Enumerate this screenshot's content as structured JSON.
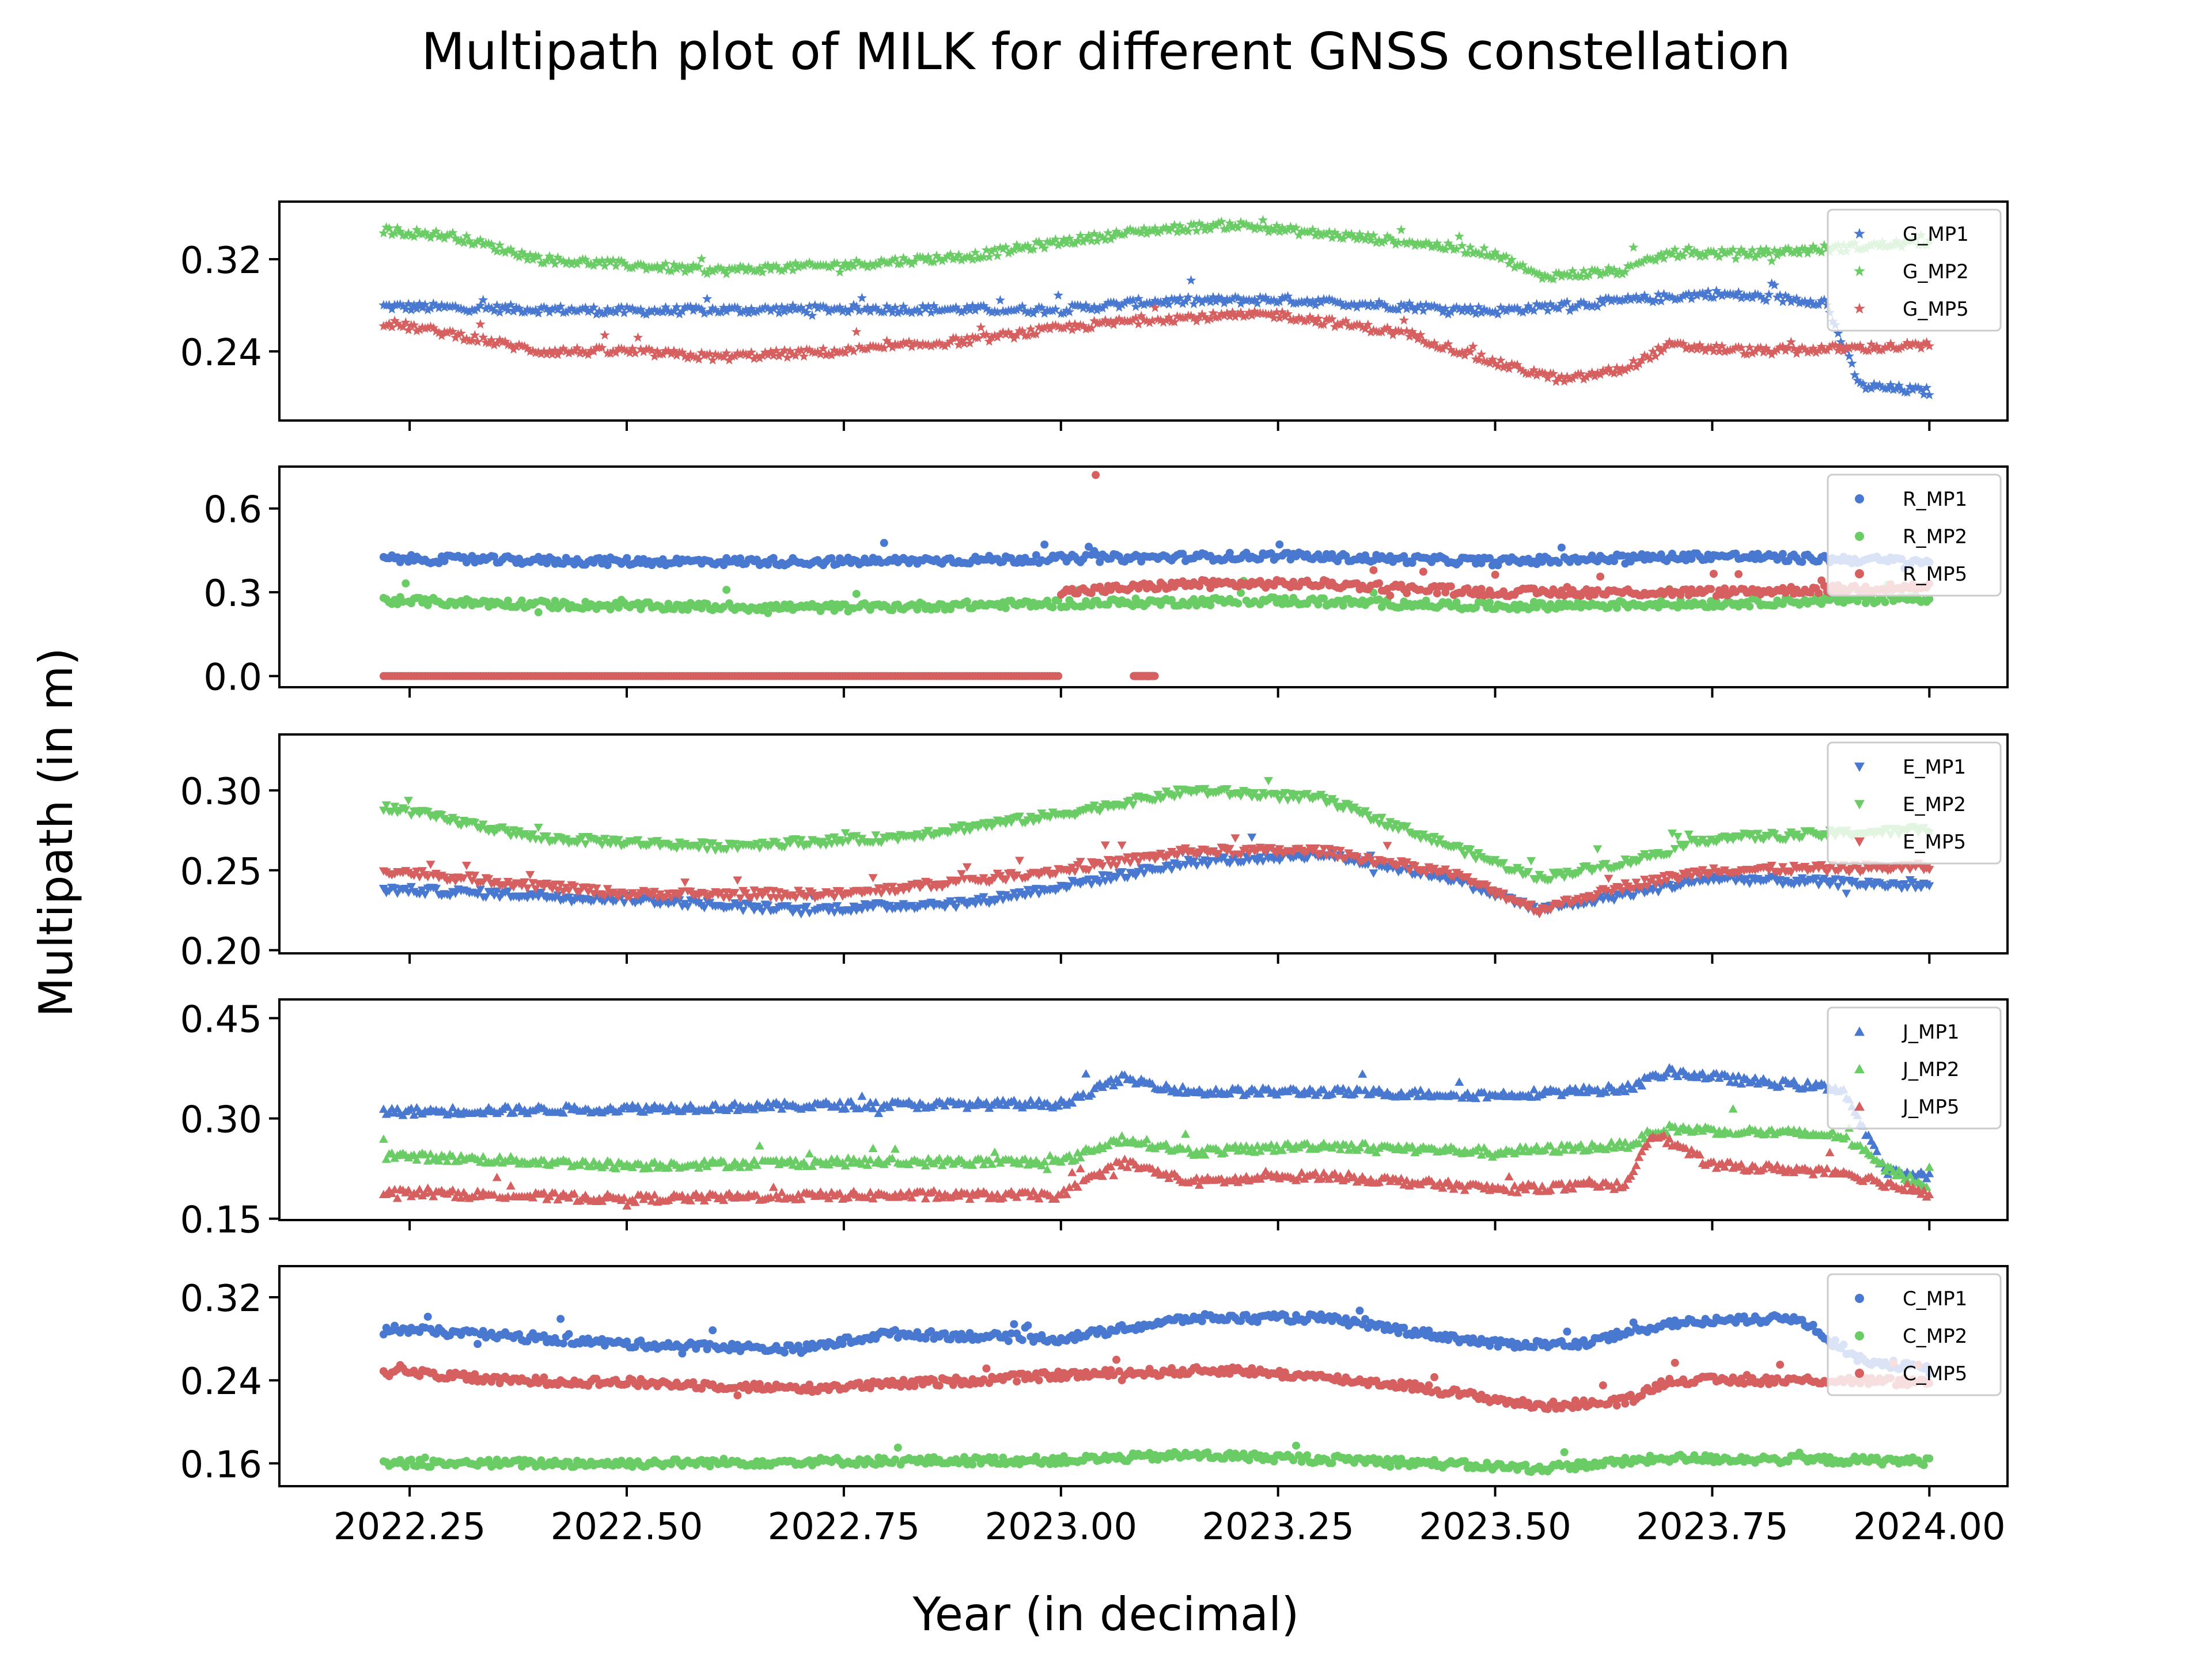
{
  "title": "Multipath plot of MILK for different GNSS constellation",
  "xlabel": "Year (in decimal)",
  "ylabel": "Multipath (in m)",
  "chart_data": {
    "type": "scatter",
    "title": "Multipath plot of MILK for different GNSS constellation",
    "xlabel": "Year (in decimal)",
    "ylabel": "Multipath (in m)",
    "xlim": [
      2022.1,
      2024.09
    ],
    "xticks": [
      2022.25,
      2022.5,
      2022.75,
      2023.0,
      2023.25,
      2023.5,
      2023.75,
      2024.0
    ],
    "xtick_labels": [
      "2022.25",
      "2022.50",
      "2022.75",
      "2023.00",
      "2023.25",
      "2023.50",
      "2023.75",
      "2024.00"
    ],
    "grid": false,
    "legend_placement": "upper-right",
    "x_range": [
      2022.22,
      2024.0
    ],
    "panels": [
      {
        "constellation": "G",
        "marker": "star",
        "ylim": [
          0.18,
          0.37
        ],
        "yticks": [
          0.24,
          0.32
        ],
        "ytick_labels": [
          "0.24",
          "0.32"
        ],
        "series": [
          {
            "name": "G_MP1",
            "color": "#4878d0",
            "profile": [
              [
                2022.22,
                0.279
              ],
              [
                2022.5,
                0.275
              ],
              [
                2022.75,
                0.277
              ],
              [
                2023.0,
                0.276
              ],
              [
                2023.1,
                0.283
              ],
              [
                2023.25,
                0.285
              ],
              [
                2023.5,
                0.275
              ],
              [
                2023.75,
                0.29
              ],
              [
                2023.88,
                0.283
              ],
              [
                2023.92,
                0.21
              ],
              [
                2024.0,
                0.205
              ]
            ]
          },
          {
            "name": "G_MP2",
            "color": "#6acc64",
            "profile": [
              [
                2022.22,
                0.345
              ],
              [
                2022.3,
                0.34
              ],
              [
                2022.4,
                0.32
              ],
              [
                2022.5,
                0.315
              ],
              [
                2022.6,
                0.31
              ],
              [
                2022.75,
                0.315
              ],
              [
                2022.9,
                0.323
              ],
              [
                2023.0,
                0.335
              ],
              [
                2023.1,
                0.345
              ],
              [
                2023.2,
                0.35
              ],
              [
                2023.3,
                0.342
              ],
              [
                2023.4,
                0.335
              ],
              [
                2023.5,
                0.325
              ],
              [
                2023.55,
                0.305
              ],
              [
                2023.65,
                0.31
              ],
              [
                2023.7,
                0.325
              ],
              [
                2023.8,
                0.325
              ],
              [
                2024.0,
                0.335
              ]
            ]
          },
          {
            "name": "G_MP5",
            "color": "#d65f5f",
            "profile": [
              [
                2022.22,
                0.265
              ],
              [
                2022.3,
                0.255
              ],
              [
                2022.4,
                0.24
              ],
              [
                2022.5,
                0.24
              ],
              [
                2022.6,
                0.235
              ],
              [
                2022.75,
                0.24
              ],
              [
                2022.9,
                0.25
              ],
              [
                2023.0,
                0.26
              ],
              [
                2023.1,
                0.268
              ],
              [
                2023.25,
                0.272
              ],
              [
                2023.4,
                0.255
              ],
              [
                2023.5,
                0.23
              ],
              [
                2023.58,
                0.215
              ],
              [
                2023.65,
                0.225
              ],
              [
                2023.7,
                0.245
              ],
              [
                2023.8,
                0.24
              ],
              [
                2024.0,
                0.245
              ]
            ]
          }
        ]
      },
      {
        "constellation": "R",
        "marker": "circle",
        "ylim": [
          -0.04,
          0.75
        ],
        "yticks": [
          0.0,
          0.3,
          0.6
        ],
        "ytick_labels": [
          "0.0",
          "0.3",
          "0.6"
        ],
        "series": [
          {
            "name": "R_MP1",
            "color": "#4878d0",
            "profile": [
              [
                2022.22,
                0.42
              ],
              [
                2022.5,
                0.41
              ],
              [
                2022.75,
                0.41
              ],
              [
                2023.0,
                0.42
              ],
              [
                2023.25,
                0.43
              ],
              [
                2023.5,
                0.41
              ],
              [
                2023.75,
                0.43
              ],
              [
                2024.0,
                0.41
              ]
            ]
          },
          {
            "name": "R_MP2",
            "color": "#6acc64",
            "profile": [
              [
                2022.22,
                0.27
              ],
              [
                2022.5,
                0.25
              ],
              [
                2022.75,
                0.245
              ],
              [
                2023.0,
                0.26
              ],
              [
                2023.25,
                0.27
              ],
              [
                2023.5,
                0.25
              ],
              [
                2023.75,
                0.26
              ],
              [
                2024.0,
                0.28
              ]
            ]
          },
          {
            "name": "R_MP5",
            "color": "#d65f5f",
            "note_max": 0.72,
            "profile": [
              [
                2022.22,
                0.0
              ],
              [
                2022.85,
                0.0
              ],
              [
                2023.08,
                0.0
              ]
            ],
            "profile_after": [
              [
                2023.0,
                0.3
              ],
              [
                2023.15,
                0.33
              ],
              [
                2023.3,
                0.33
              ],
              [
                2023.5,
                0.3
              ],
              [
                2023.75,
                0.3
              ],
              [
                2024.0,
                0.32
              ]
            ]
          }
        ]
      },
      {
        "constellation": "E",
        "marker": "triangle-down",
        "ylim": [
          0.198,
          0.335
        ],
        "yticks": [
          0.2,
          0.25,
          0.3
        ],
        "ytick_labels": [
          "0.20",
          "0.25",
          "0.30"
        ],
        "series": [
          {
            "name": "E_MP1",
            "color": "#4878d0",
            "profile": [
              [
                2022.22,
                0.238
              ],
              [
                2022.5,
                0.232
              ],
              [
                2022.7,
                0.225
              ],
              [
                2022.9,
                0.23
              ],
              [
                2023.0,
                0.24
              ],
              [
                2023.15,
                0.255
              ],
              [
                2023.3,
                0.26
              ],
              [
                2023.45,
                0.245
              ],
              [
                2023.55,
                0.225
              ],
              [
                2023.65,
                0.235
              ],
              [
                2023.75,
                0.245
              ],
              [
                2024.0,
                0.24
              ]
            ]
          },
          {
            "name": "E_MP2",
            "color": "#6acc64",
            "profile": [
              [
                2022.22,
                0.29
              ],
              [
                2022.4,
                0.27
              ],
              [
                2022.6,
                0.265
              ],
              [
                2022.8,
                0.27
              ],
              [
                2023.0,
                0.285
              ],
              [
                2023.15,
                0.3
              ],
              [
                2023.3,
                0.295
              ],
              [
                2023.45,
                0.265
              ],
              [
                2023.55,
                0.245
              ],
              [
                2023.65,
                0.255
              ],
              [
                2023.75,
                0.27
              ],
              [
                2024.0,
                0.275
              ]
            ]
          },
          {
            "name": "E_MP5",
            "color": "#d65f5f",
            "profile": [
              [
                2022.22,
                0.25
              ],
              [
                2022.5,
                0.235
              ],
              [
                2022.75,
                0.235
              ],
              [
                2023.0,
                0.25
              ],
              [
                2023.15,
                0.262
              ],
              [
                2023.3,
                0.262
              ],
              [
                2023.45,
                0.248
              ],
              [
                2023.55,
                0.225
              ],
              [
                2023.65,
                0.24
              ],
              [
                2023.75,
                0.25
              ],
              [
                2024.0,
                0.252
              ]
            ]
          }
        ]
      },
      {
        "constellation": "J",
        "marker": "triangle-up",
        "ylim": [
          0.148,
          0.478
        ],
        "yticks": [
          0.15,
          0.3,
          0.45
        ],
        "ytick_labels": [
          "0.15",
          "0.30",
          "0.45"
        ],
        "series": [
          {
            "name": "J_MP1",
            "color": "#4878d0",
            "profile": [
              [
                2022.22,
                0.31
              ],
              [
                2022.5,
                0.315
              ],
              [
                2022.75,
                0.32
              ],
              [
                2023.0,
                0.322
              ],
              [
                2023.07,
                0.36
              ],
              [
                2023.15,
                0.34
              ],
              [
                2023.3,
                0.34
              ],
              [
                2023.5,
                0.335
              ],
              [
                2023.65,
                0.345
              ],
              [
                2023.7,
                0.37
              ],
              [
                2023.8,
                0.355
              ],
              [
                2023.9,
                0.345
              ],
              [
                2023.95,
                0.22
              ],
              [
                2024.0,
                0.215
              ]
            ]
          },
          {
            "name": "J_MP2",
            "color": "#6acc64",
            "profile": [
              [
                2022.22,
                0.245
              ],
              [
                2022.5,
                0.23
              ],
              [
                2022.75,
                0.235
              ],
              [
                2023.0,
                0.235
              ],
              [
                2023.07,
                0.27
              ],
              [
                2023.15,
                0.25
              ],
              [
                2023.3,
                0.26
              ],
              [
                2023.5,
                0.25
              ],
              [
                2023.65,
                0.26
              ],
              [
                2023.7,
                0.285
              ],
              [
                2023.9,
                0.275
              ],
              [
                2023.95,
                0.225
              ],
              [
                2024.0,
                0.2
              ]
            ]
          },
          {
            "name": "J_MP5",
            "color": "#d65f5f",
            "profile": [
              [
                2022.22,
                0.19
              ],
              [
                2022.5,
                0.18
              ],
              [
                2022.75,
                0.185
              ],
              [
                2023.0,
                0.185
              ],
              [
                2023.07,
                0.235
              ],
              [
                2023.15,
                0.205
              ],
              [
                2023.3,
                0.215
              ],
              [
                2023.5,
                0.195
              ],
              [
                2023.65,
                0.2
              ],
              [
                2023.68,
                0.28
              ],
              [
                2023.75,
                0.23
              ],
              [
                2023.9,
                0.22
              ],
              [
                2024.0,
                0.185
              ]
            ]
          }
        ]
      },
      {
        "constellation": "C",
        "marker": "circle",
        "ylim": [
          0.138,
          0.35
        ],
        "yticks": [
          0.16,
          0.24,
          0.32
        ],
        "ytick_labels": [
          "0.16",
          "0.24",
          "0.32"
        ],
        "series": [
          {
            "name": "C_MP1",
            "color": "#4878d0",
            "profile": [
              [
                2022.22,
                0.29
              ],
              [
                2022.5,
                0.275
              ],
              [
                2022.7,
                0.27
              ],
              [
                2022.8,
                0.285
              ],
              [
                2023.0,
                0.28
              ],
              [
                2023.15,
                0.3
              ],
              [
                2023.3,
                0.3
              ],
              [
                2023.5,
                0.275
              ],
              [
                2023.6,
                0.275
              ],
              [
                2023.7,
                0.295
              ],
              [
                2023.85,
                0.3
              ],
              [
                2023.92,
                0.26
              ],
              [
                2024.0,
                0.25
              ]
            ]
          },
          {
            "name": "C_MP2",
            "color": "#6acc64",
            "profile": [
              [
                2022.22,
                0.16
              ],
              [
                2022.5,
                0.16
              ],
              [
                2022.75,
                0.162
              ],
              [
                2023.0,
                0.163
              ],
              [
                2023.15,
                0.168
              ],
              [
                2023.35,
                0.163
              ],
              [
                2023.55,
                0.155
              ],
              [
                2023.7,
                0.165
              ],
              [
                2024.0,
                0.162
              ]
            ]
          },
          {
            "name": "C_MP5",
            "color": "#d65f5f",
            "profile": [
              [
                2022.22,
                0.25
              ],
              [
                2022.35,
                0.24
              ],
              [
                2022.5,
                0.238
              ],
              [
                2022.7,
                0.232
              ],
              [
                2022.9,
                0.24
              ],
              [
                2023.0,
                0.245
              ],
              [
                2023.2,
                0.25
              ],
              [
                2023.4,
                0.235
              ],
              [
                2023.55,
                0.215
              ],
              [
                2023.65,
                0.22
              ],
              [
                2023.7,
                0.24
              ],
              [
                2023.9,
                0.24
              ],
              [
                2024.0,
                0.238
              ]
            ]
          }
        ]
      }
    ]
  }
}
